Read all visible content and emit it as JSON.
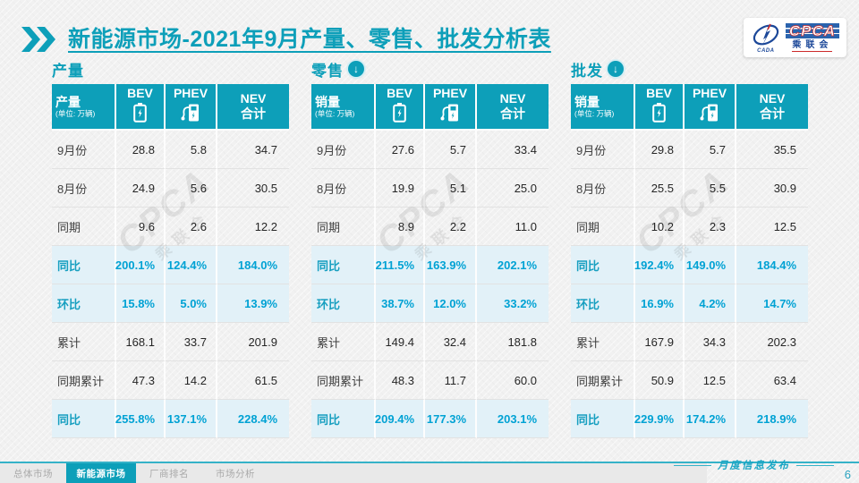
{
  "title": {
    "main": "新能源市场",
    "rest": "-2021年9月产量、零售、批发分析表"
  },
  "logo": {
    "acronym": "CPCA",
    "chinese": "乘联会",
    "affiliate": "CADA"
  },
  "colors": {
    "accent_teal": "#0d9fb9",
    "number_cyan": "#00a2d4",
    "highlight_row_bg": "#e2f1f8",
    "logo_blue": "#1c4899",
    "logo_red": "#cc2a2a"
  },
  "tables": [
    {
      "id": "production",
      "section_title": "产量",
      "has_down_arrow": false,
      "label_header": "产量",
      "unit": "(单位: 万辆)",
      "columns": [
        {
          "label": "BEV",
          "icon": "battery-icon"
        },
        {
          "label": "PHEV",
          "icon": "charging-station-icon"
        },
        {
          "label": "NEV",
          "sublabel": "合计"
        }
      ],
      "rows": [
        {
          "label": "9月份",
          "values": [
            "28.8",
            "5.8",
            "34.7"
          ],
          "type": "normal"
        },
        {
          "label": "8月份",
          "values": [
            "24.9",
            "5.6",
            "30.5"
          ],
          "type": "normal"
        },
        {
          "label": "同期",
          "values": [
            "9.6",
            "2.6",
            "12.2"
          ],
          "type": "normal"
        },
        {
          "label": "同比",
          "values": [
            "200.1%",
            "124.4%",
            "184.0%"
          ],
          "type": "highlight"
        },
        {
          "label": "环比",
          "values": [
            "15.8%",
            "5.0%",
            "13.9%"
          ],
          "type": "highlight"
        },
        {
          "label": "累计",
          "values": [
            "168.1",
            "33.7",
            "201.9"
          ],
          "type": "normal"
        },
        {
          "label": "同期累计",
          "values": [
            "47.3",
            "14.2",
            "61.5"
          ],
          "type": "normal"
        },
        {
          "label": "同比",
          "values": [
            "255.8%",
            "137.1%",
            "228.4%"
          ],
          "type": "highlight"
        }
      ]
    },
    {
      "id": "retail",
      "section_title": "零售",
      "has_down_arrow": true,
      "label_header": "销量",
      "unit": "(单位: 万辆)",
      "columns": [
        {
          "label": "BEV",
          "icon": "battery-icon"
        },
        {
          "label": "PHEV",
          "icon": "charging-station-icon"
        },
        {
          "label": "NEV",
          "sublabel": "合计"
        }
      ],
      "rows": [
        {
          "label": "9月份",
          "values": [
            "27.6",
            "5.7",
            "33.4"
          ],
          "type": "normal"
        },
        {
          "label": "8月份",
          "values": [
            "19.9",
            "5.1",
            "25.0"
          ],
          "type": "normal"
        },
        {
          "label": "同期",
          "values": [
            "8.9",
            "2.2",
            "11.0"
          ],
          "type": "normal"
        },
        {
          "label": "同比",
          "values": [
            "211.5%",
            "163.9%",
            "202.1%"
          ],
          "type": "highlight"
        },
        {
          "label": "环比",
          "values": [
            "38.7%",
            "12.0%",
            "33.2%"
          ],
          "type": "highlight"
        },
        {
          "label": "累计",
          "values": [
            "149.4",
            "32.4",
            "181.8"
          ],
          "type": "normal"
        },
        {
          "label": "同期累计",
          "values": [
            "48.3",
            "11.7",
            "60.0"
          ],
          "type": "normal"
        },
        {
          "label": "同比",
          "values": [
            "209.4%",
            "177.3%",
            "203.1%"
          ],
          "type": "highlight"
        }
      ]
    },
    {
      "id": "wholesale",
      "section_title": "批发",
      "has_down_arrow": true,
      "label_header": "销量",
      "unit": "(单位: 万辆)",
      "columns": [
        {
          "label": "BEV",
          "icon": "battery-icon"
        },
        {
          "label": "PHEV",
          "icon": "charging-station-icon"
        },
        {
          "label": "NEV",
          "sublabel": "合计"
        }
      ],
      "rows": [
        {
          "label": "9月份",
          "values": [
            "29.8",
            "5.7",
            "35.5"
          ],
          "type": "normal"
        },
        {
          "label": "8月份",
          "values": [
            "25.5",
            "5.5",
            "30.9"
          ],
          "type": "normal"
        },
        {
          "label": "同期",
          "values": [
            "10.2",
            "2.3",
            "12.5"
          ],
          "type": "normal"
        },
        {
          "label": "同比",
          "values": [
            "192.4%",
            "149.0%",
            "184.4%"
          ],
          "type": "highlight"
        },
        {
          "label": "环比",
          "values": [
            "16.9%",
            "4.2%",
            "14.7%"
          ],
          "type": "highlight"
        },
        {
          "label": "累计",
          "values": [
            "167.9",
            "34.3",
            "202.3"
          ],
          "type": "normal"
        },
        {
          "label": "同期累计",
          "values": [
            "50.9",
            "12.5",
            "63.4"
          ],
          "type": "normal"
        },
        {
          "label": "同比",
          "values": [
            "229.9%",
            "174.2%",
            "218.9%"
          ],
          "type": "highlight"
        }
      ]
    }
  ],
  "footer": {
    "tabs": [
      {
        "label": "总体市场",
        "active": false
      },
      {
        "label": "新能源市场",
        "active": true
      },
      {
        "label": "厂商排名",
        "active": false
      },
      {
        "label": "市场分析",
        "active": false
      }
    ],
    "publication": "月度信息发布",
    "page_number": "6"
  }
}
